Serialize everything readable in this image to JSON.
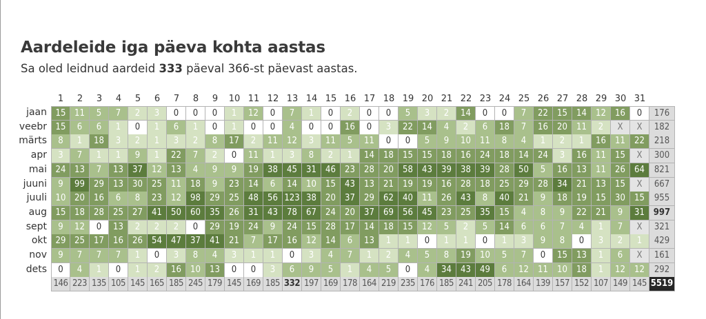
{
  "title": "Aardeleide iga päeva kohta aastas",
  "subtitle": {
    "prefix": "Sa oled leidnud aardeid",
    "days_found": "333",
    "suffix": "päeval 366-st päevast aastas."
  },
  "colors": {
    "level0": "#ffffff",
    "level1": "#d5e2c2",
    "level2": "#a9c08c",
    "level3": "#819c60",
    "level4": "#5c7c3d",
    "na": "#e4e4e4",
    "total": "#dcdcdc",
    "grand": "#262626"
  },
  "na_symbol": "X",
  "day_headers": [
    "1",
    "2",
    "3",
    "4",
    "5",
    "6",
    "7",
    "8",
    "9",
    "10",
    "11",
    "12",
    "13",
    "14",
    "15",
    "16",
    "17",
    "18",
    "19",
    "20",
    "21",
    "22",
    "23",
    "24",
    "25",
    "26",
    "27",
    "28",
    "29",
    "30",
    "31"
  ],
  "months": [
    {
      "label": "jaan",
      "days": [
        15,
        11,
        5,
        7,
        2,
        3,
        0,
        0,
        0,
        1,
        12,
        0,
        7,
        1,
        0,
        2,
        0,
        0,
        5,
        3,
        2,
        14,
        0,
        0,
        7,
        22,
        15,
        14,
        12,
        16,
        0
      ],
      "total": "176"
    },
    {
      "label": "veebr",
      "days": [
        15,
        6,
        6,
        1,
        0,
        1,
        6,
        1,
        0,
        1,
        0,
        0,
        4,
        0,
        0,
        16,
        0,
        3,
        22,
        14,
        4,
        2,
        6,
        18,
        7,
        16,
        20,
        11,
        2,
        "X",
        "X"
      ],
      "total": "182"
    },
    {
      "label": "märts",
      "days": [
        8,
        1,
        18,
        3,
        2,
        1,
        3,
        2,
        8,
        17,
        2,
        11,
        12,
        3,
        11,
        5,
        11,
        0,
        0,
        5,
        9,
        10,
        11,
        8,
        4,
        1,
        2,
        1,
        16,
        11,
        22
      ],
      "total": "218"
    },
    {
      "label": "apr",
      "days": [
        3,
        7,
        1,
        1,
        9,
        1,
        22,
        7,
        2,
        0,
        11,
        1,
        3,
        8,
        2,
        1,
        14,
        18,
        15,
        15,
        18,
        16,
        24,
        18,
        14,
        24,
        3,
        16,
        11,
        15,
        "X"
      ],
      "total": "300"
    },
    {
      "label": "mai",
      "days": [
        24,
        13,
        7,
        13,
        37,
        12,
        13,
        4,
        9,
        9,
        19,
        38,
        45,
        31,
        46,
        23,
        28,
        20,
        58,
        43,
        39,
        38,
        39,
        28,
        50,
        5,
        16,
        13,
        11,
        26,
        64
      ],
      "total": "821"
    },
    {
      "label": "juuni",
      "days": [
        9,
        99,
        29,
        13,
        30,
        25,
        11,
        18,
        9,
        23,
        14,
        6,
        14,
        10,
        15,
        43,
        13,
        21,
        19,
        19,
        16,
        28,
        18,
        25,
        29,
        28,
        34,
        21,
        13,
        15,
        "X"
      ],
      "total": "667"
    },
    {
      "label": "juuli",
      "days": [
        10,
        20,
        16,
        6,
        8,
        23,
        12,
        98,
        29,
        25,
        48,
        56,
        123,
        38,
        20,
        37,
        29,
        62,
        40,
        11,
        26,
        43,
        8,
        40,
        21,
        9,
        18,
        19,
        15,
        30,
        15
      ],
      "total": "955"
    },
    {
      "label": "aug",
      "days": [
        15,
        18,
        28,
        25,
        27,
        41,
        50,
        60,
        35,
        26,
        31,
        43,
        78,
        67,
        24,
        20,
        37,
        69,
        56,
        45,
        23,
        25,
        35,
        15,
        4,
        8,
        9,
        22,
        21,
        9,
        31
      ],
      "total": "997",
      "best": true
    },
    {
      "label": "sept",
      "days": [
        9,
        12,
        0,
        13,
        2,
        2,
        2,
        0,
        29,
        19,
        24,
        9,
        24,
        15,
        28,
        17,
        14,
        18,
        15,
        12,
        5,
        2,
        5,
        14,
        6,
        6,
        7,
        4,
        1,
        7,
        "X"
      ],
      "total": "321"
    },
    {
      "label": "okt",
      "days": [
        29,
        25,
        17,
        16,
        26,
        54,
        47,
        37,
        41,
        21,
        7,
        17,
        16,
        12,
        14,
        6,
        13,
        1,
        1,
        0,
        1,
        1,
        0,
        1,
        3,
        9,
        8,
        0,
        3,
        2,
        1
      ],
      "total": "429"
    },
    {
      "label": "nov",
      "days": [
        9,
        7,
        7,
        7,
        1,
        0,
        3,
        8,
        4,
        3,
        1,
        1,
        0,
        3,
        4,
        7,
        1,
        2,
        4,
        5,
        8,
        19,
        10,
        5,
        7,
        0,
        15,
        13,
        1,
        6,
        "X"
      ],
      "total": "161"
    },
    {
      "label": "dets",
      "days": [
        0,
        4,
        1,
        0,
        1,
        2,
        16,
        10,
        13,
        0,
        0,
        3,
        6,
        9,
        5,
        1,
        4,
        5,
        0,
        4,
        34,
        43,
        49,
        6,
        12,
        11,
        10,
        18,
        1,
        12,
        12
      ],
      "total": "292"
    }
  ],
  "column_totals": [
    "146",
    "223",
    "135",
    "105",
    "145",
    "165",
    "185",
    "245",
    "179",
    "145",
    "169",
    "185",
    "332",
    "197",
    "169",
    "178",
    "164",
    "219",
    "235",
    "176",
    "185",
    "241",
    "205",
    "178",
    "164",
    "139",
    "157",
    "152",
    "107",
    "149",
    "145"
  ],
  "best_column_index": 12,
  "grand_total": "5519"
}
